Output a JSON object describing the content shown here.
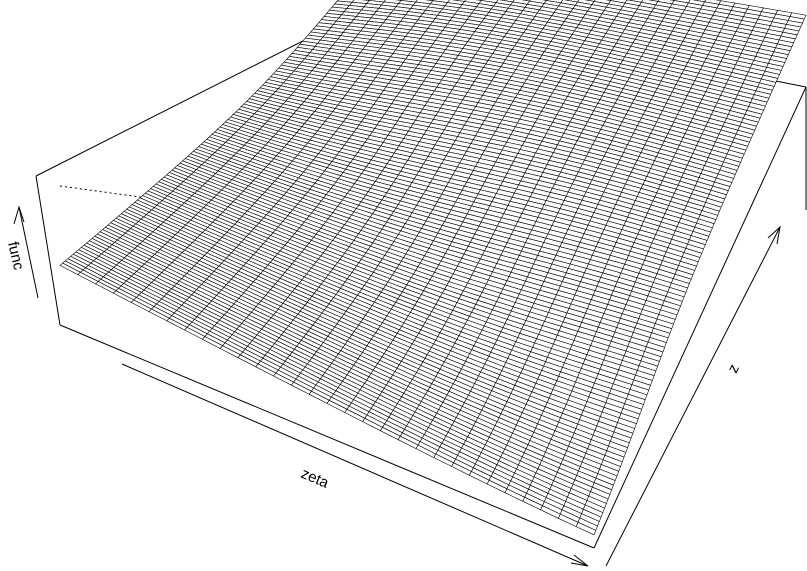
{
  "chart_data": {
    "type": "surface",
    "xlabel": "zeta",
    "ylabel": "z",
    "zlabel": "func",
    "grid_resolution": {
      "x_lines": 30,
      "y_lines": 120
    },
    "shape": "logistic ridge rising along zeta and z, plateau near the far corner",
    "colors": {
      "line": "#000000",
      "background": "#ffffff"
    }
  }
}
